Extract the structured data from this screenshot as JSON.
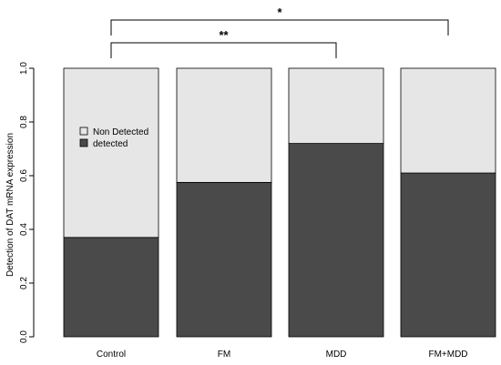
{
  "chart_data": {
    "type": "bar",
    "stacked": true,
    "categories": [
      "Control",
      "FM",
      "MDD",
      "FM+MDD"
    ],
    "series": [
      {
        "name": "detected",
        "values": [
          0.37,
          0.575,
          0.72,
          0.61
        ],
        "color": "#4a4a4a"
      },
      {
        "name": "Non Detected",
        "values": [
          0.63,
          0.425,
          0.28,
          0.39
        ],
        "color": "#e6e6e6"
      }
    ],
    "ylabel": "Detection of DAT mRNA expression",
    "xlabel": "",
    "ylim": [
      0,
      1
    ],
    "yticks": [
      "0.0",
      "0.2",
      "0.4",
      "0.6",
      "0.8",
      "1.0"
    ],
    "legend": {
      "placement": "top-left inside first bar",
      "entries": [
        {
          "label": "Non Detected",
          "color": "#e6e6e6"
        },
        {
          "label": "detected",
          "color": "#4a4a4a"
        }
      ]
    },
    "significance": [
      {
        "from": "Control",
        "to": "MDD",
        "label": "**"
      },
      {
        "from": "Control",
        "to": "FM+MDD",
        "label": "*"
      }
    ]
  }
}
